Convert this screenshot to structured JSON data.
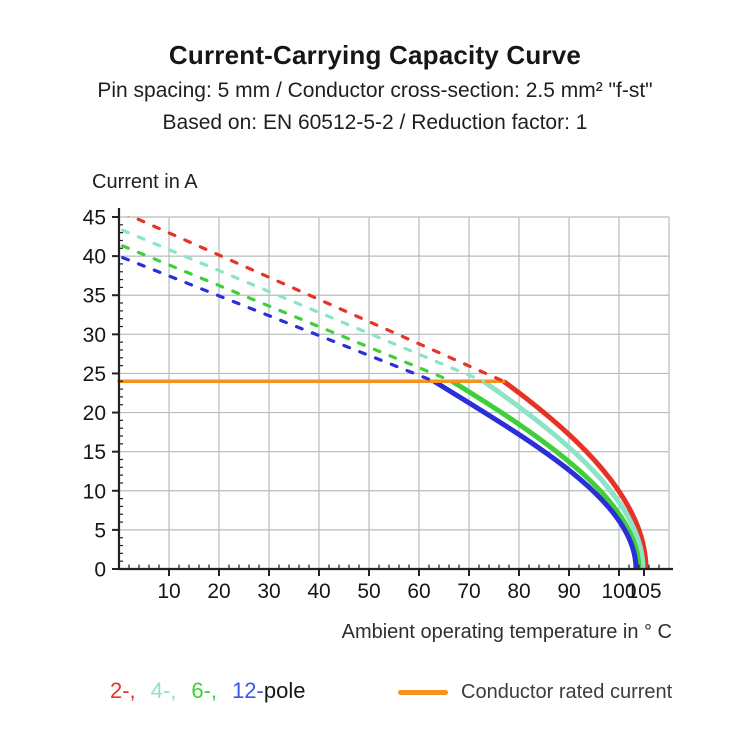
{
  "header": {
    "title": "Current-Carrying Capacity Curve",
    "subtitle1": "Pin spacing: 5 mm / Conductor cross-section: 2.5 mm² \"f-st\"",
    "subtitle2": "Based on: EN 60512-5-2 / Reduction factor: 1"
  },
  "chart_data": {
    "type": "line",
    "title": "Current-Carrying Capacity Curve",
    "xlabel": "Ambient operating temperature in ° C",
    "ylabel": "Current in A",
    "xlim": [
      0,
      110
    ],
    "ylim": [
      0,
      45
    ],
    "x_ticks": [
      10,
      20,
      30,
      40,
      50,
      60,
      70,
      80,
      90,
      100,
      105
    ],
    "y_ticks": [
      45,
      40,
      35,
      30,
      25,
      20,
      15,
      10,
      5,
      0
    ],
    "x_minor_step": 2,
    "y_minor_step": 1,
    "grid": true,
    "grid_color": "#b4bdbd",
    "axis_color": "#222222",
    "rated_current": {
      "label": "Conductor rated current",
      "value_A": 24,
      "x_extent_c": [
        0,
        76.9
      ],
      "color": "#f6921e"
    },
    "series": [
      {
        "name": "2-pole",
        "color": "#e63328",
        "dashed_segment": {
          "from": [
            0,
            45.8
          ],
          "to": [
            76.9,
            24
          ]
        },
        "solid_segment": {
          "from": [
            76.9,
            24
          ],
          "c1": [
            91.9,
            17.0
          ],
          "c2": [
            105.4,
            8.8
          ],
          "to": [
            105.4,
            0
          ]
        }
      },
      {
        "name": "4-pole",
        "color": "#8ce3c6",
        "dashed_segment": {
          "from": [
            0,
            43.5
          ],
          "to": [
            72.9,
            24
          ]
        },
        "solid_segment": {
          "from": [
            72.9,
            24
          ],
          "c1": [
            88.9,
            16.9
          ],
          "c2": [
            104.8,
            8.6
          ],
          "to": [
            104.8,
            0
          ]
        }
      },
      {
        "name": "6-pole",
        "color": "#3fcf3b",
        "dashed_segment": {
          "from": [
            0,
            41.5
          ],
          "to": [
            66.6,
            24
          ]
        },
        "solid_segment": {
          "from": [
            66.6,
            24
          ],
          "c1": [
            84.9,
            16.8
          ],
          "c2": [
            104.0,
            8.6
          ],
          "to": [
            104.0,
            0
          ]
        }
      },
      {
        "name": "12-pole",
        "color": "#2b2fd8",
        "dashed_segment": {
          "from": [
            0,
            40.0
          ],
          "to": [
            63.0,
            24
          ]
        },
        "solid_segment": {
          "from": [
            63.0,
            24
          ],
          "c1": [
            81.9,
            16.5
          ],
          "c2": [
            103.4,
            8.8
          ],
          "to": [
            103.4,
            0
          ]
        }
      }
    ]
  },
  "legend": {
    "pole_tokens": [
      {
        "text": "2-,",
        "color": "#e63328"
      },
      {
        "text": "4-,",
        "color": "#8ce3c6"
      },
      {
        "text": "6-,",
        "color": "#3fcf3b"
      },
      {
        "text": "12-",
        "color": "#3a57e8"
      },
      {
        "text": "pole",
        "color": "#161616"
      }
    ],
    "rated_label": "Conductor rated current"
  }
}
